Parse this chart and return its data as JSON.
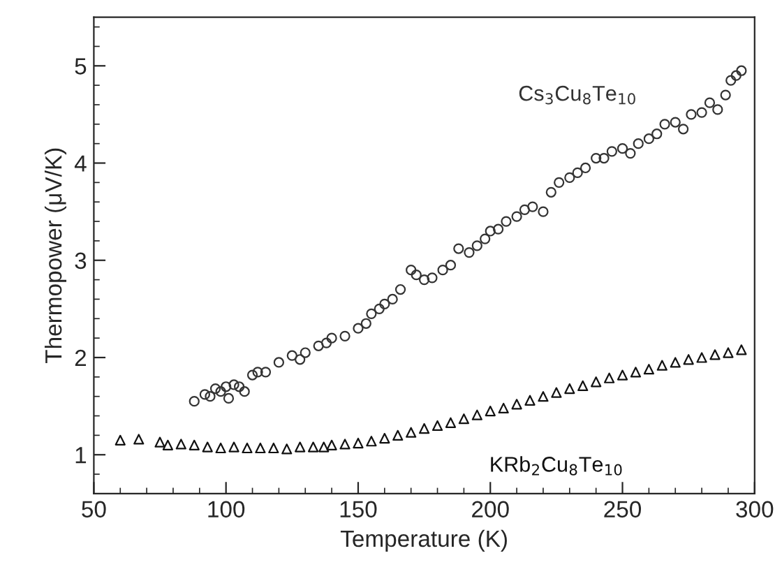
{
  "chart_data": {
    "type": "scatter",
    "xlabel": "Temperature (K)",
    "ylabel": "Thermopower (μV/K)",
    "xlim": [
      50,
      300
    ],
    "ylim": [
      0.6,
      5.5
    ],
    "xticks": [
      50,
      {
        "value": 60,
        "label": null
      },
      {
        "value": 70,
        "label": null
      },
      {
        "value": 80,
        "label": null
      },
      {
        "value": 90,
        "label": null
      },
      100,
      {
        "value": 110,
        "label": null
      },
      {
        "value": 120,
        "label": null
      },
      {
        "value": 130,
        "label": null
      },
      {
        "value": 140,
        "label": null
      },
      150,
      {
        "value": 160,
        "label": null
      },
      {
        "value": 170,
        "label": null
      },
      {
        "value": 180,
        "label": null
      },
      {
        "value": 190,
        "label": null
      },
      200,
      {
        "value": 210,
        "label": null
      },
      {
        "value": 220,
        "label": null
      },
      {
        "value": 230,
        "label": null
      },
      {
        "value": 240,
        "label": null
      },
      250,
      {
        "value": 260,
        "label": null
      },
      {
        "value": 270,
        "label": null
      },
      {
        "value": 280,
        "label": null
      },
      {
        "value": 290,
        "label": null
      },
      300
    ],
    "yticks": [
      {
        "value": 0.8,
        "label": null
      },
      1,
      {
        "value": 1.2,
        "label": null
      },
      {
        "value": 1.4,
        "label": null
      },
      {
        "value": 1.6,
        "label": null
      },
      {
        "value": 1.8,
        "label": null
      },
      2,
      {
        "value": 2.2,
        "label": null
      },
      {
        "value": 2.4,
        "label": null
      },
      {
        "value": 2.6,
        "label": null
      },
      {
        "value": 2.8,
        "label": null
      },
      3,
      {
        "value": 3.2,
        "label": null
      },
      {
        "value": 3.4,
        "label": null
      },
      {
        "value": 3.6,
        "label": null
      },
      {
        "value": 3.8,
        "label": null
      },
      4,
      {
        "value": 4.2,
        "label": null
      },
      {
        "value": 4.4,
        "label": null
      },
      {
        "value": 4.6,
        "label": null
      },
      {
        "value": 4.8,
        "label": null
      },
      5,
      {
        "value": 5.2,
        "label": null
      },
      {
        "value": 5.4,
        "label": null
      }
    ],
    "grid": false,
    "legend": false,
    "series": [
      {
        "name": "Cs$_{3}$Cu$_{8}$Te$_{10}$",
        "color": "#333333",
        "marker": "circle",
        "x": [
          88,
          92,
          94,
          96,
          98,
          100,
          101,
          103,
          105,
          107,
          110,
          112,
          115,
          120,
          125,
          128,
          130,
          135,
          138,
          140,
          145,
          150,
          153,
          155,
          158,
          160,
          163,
          166,
          170,
          172,
          175,
          178,
          182,
          185,
          188,
          192,
          195,
          198,
          200,
          203,
          206,
          210,
          213,
          216,
          220,
          223,
          226,
          230,
          233,
          236,
          240,
          243,
          246,
          250,
          253,
          256,
          260,
          263,
          266,
          270,
          273,
          276,
          280,
          283,
          286,
          289,
          291,
          293,
          295
        ],
        "values": [
          1.55,
          1.62,
          1.6,
          1.68,
          1.65,
          1.7,
          1.58,
          1.72,
          1.7,
          1.65,
          1.82,
          1.85,
          1.85,
          1.95,
          2.02,
          1.98,
          2.05,
          2.12,
          2.15,
          2.2,
          2.22,
          2.3,
          2.35,
          2.45,
          2.5,
          2.55,
          2.6,
          2.7,
          2.9,
          2.85,
          2.8,
          2.82,
          2.9,
          2.95,
          3.12,
          3.08,
          3.15,
          3.22,
          3.3,
          3.32,
          3.4,
          3.45,
          3.52,
          3.55,
          3.5,
          3.7,
          3.8,
          3.85,
          3.9,
          3.95,
          4.05,
          4.05,
          4.12,
          4.15,
          4.1,
          4.2,
          4.25,
          4.3,
          4.4,
          4.42,
          4.35,
          4.5,
          4.52,
          4.62,
          4.55,
          4.7,
          4.85,
          4.9,
          4.95
        ]
      },
      {
        "name": "KRb$_{2}$Cu$_{8}$Te$_{10}$",
        "color": "#111111",
        "marker": "triangle",
        "x": [
          60,
          67,
          75,
          78,
          83,
          88,
          93,
          98,
          103,
          108,
          113,
          118,
          123,
          128,
          133,
          137,
          140,
          145,
          150,
          155,
          160,
          165,
          170,
          175,
          180,
          185,
          190,
          195,
          200,
          205,
          210,
          215,
          220,
          225,
          230,
          235,
          240,
          245,
          250,
          255,
          260,
          265,
          270,
          275,
          280,
          285,
          290,
          295
        ],
        "values": [
          1.15,
          1.16,
          1.13,
          1.1,
          1.11,
          1.1,
          1.08,
          1.07,
          1.08,
          1.07,
          1.07,
          1.07,
          1.06,
          1.08,
          1.08,
          1.08,
          1.1,
          1.11,
          1.12,
          1.14,
          1.17,
          1.2,
          1.23,
          1.27,
          1.3,
          1.33,
          1.37,
          1.41,
          1.45,
          1.48,
          1.52,
          1.56,
          1.6,
          1.64,
          1.68,
          1.71,
          1.75,
          1.79,
          1.82,
          1.85,
          1.88,
          1.92,
          1.95,
          1.98,
          2.0,
          2.03,
          2.05,
          2.08
        ]
      }
    ]
  }
}
